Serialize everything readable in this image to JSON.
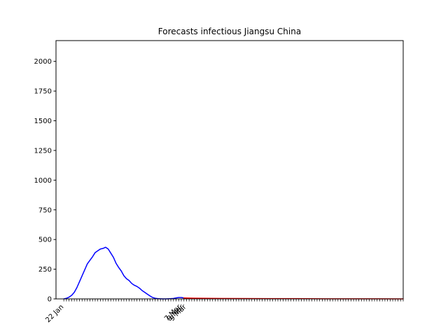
{
  "chart_data": {
    "type": "line",
    "title": "Forecasts infectious Jiangsu China",
    "xlabel": "",
    "ylabel": "",
    "ylim": [
      0,
      2175
    ],
    "yticks": [
      0,
      250,
      500,
      750,
      1000,
      1250,
      1500,
      1750,
      2000
    ],
    "x_range_days": [
      -3,
      130
    ],
    "xtick_labels": [
      {
        "day": 0,
        "label": "22 Jan"
      },
      {
        "day": 45,
        "label": "7 Mar"
      },
      {
        "day": 46,
        "label": "8 Mar"
      },
      {
        "day": 47,
        "label": "9 Mar"
      }
    ],
    "series": [
      {
        "color": "#0000ff",
        "x_day": [
          0,
          1,
          2,
          3,
          4,
          5,
          6,
          7,
          8,
          9,
          10,
          11,
          12,
          13,
          14,
          15,
          16,
          17,
          18,
          19,
          20,
          21,
          22,
          23,
          24,
          25,
          26,
          27,
          28,
          29,
          30,
          31,
          32,
          33,
          34,
          35,
          36,
          37,
          38,
          39,
          40,
          41,
          42,
          43,
          44,
          45,
          46,
          47
        ],
        "y": [
          0,
          5,
          15,
          30,
          55,
          95,
          145,
          195,
          245,
          295,
          325,
          355,
          390,
          405,
          420,
          425,
          435,
          420,
          385,
          350,
          300,
          265,
          235,
          195,
          170,
          155,
          130,
          115,
          105,
          90,
          70,
          55,
          40,
          25,
          12,
          5,
          2,
          1,
          0,
          0,
          1,
          2,
          4,
          8,
          12,
          12,
          8,
          5
        ]
      },
      {
        "color": "#ff0000",
        "x_day": [
          46,
          50,
          60,
          70,
          80,
          90,
          100,
          110,
          120,
          130
        ],
        "y": [
          8,
          6,
          4,
          3,
          2,
          2,
          1,
          1,
          1,
          0
        ]
      }
    ],
    "grid": false,
    "legend": "none"
  }
}
